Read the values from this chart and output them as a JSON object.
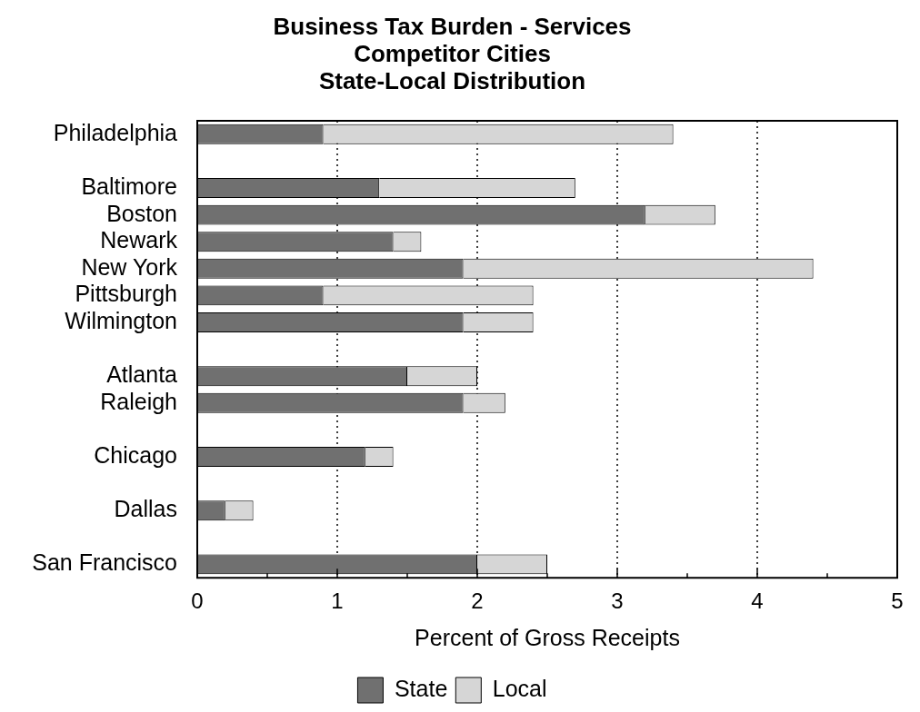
{
  "chart_data": {
    "type": "bar",
    "orientation": "horizontal",
    "stacked": true,
    "title": "Business Tax Burden - Services",
    "subtitle": "Competitor Cities\nState-Local Distribution",
    "xlabel": "Percent of Gross Receipts",
    "categories": [
      "Philadelphia",
      null,
      "Baltimore",
      "Boston",
      "Newark",
      "New York",
      "Pittsburgh",
      "Wilmington",
      null,
      "Atlanta",
      "Raleigh",
      null,
      "Chicago",
      null,
      "Dallas",
      null,
      "San Francisco"
    ],
    "series": [
      {
        "name": "State",
        "color": "#707070",
        "values": [
          0.9,
          null,
          1.3,
          3.2,
          1.4,
          1.9,
          0.9,
          1.9,
          null,
          1.5,
          1.9,
          null,
          1.2,
          null,
          0.2,
          null,
          2.0
        ]
      },
      {
        "name": "Local",
        "color": "#d6d6d6",
        "values": [
          2.5,
          null,
          1.4,
          0.5,
          0.2,
          2.5,
          1.5,
          0.5,
          null,
          0.5,
          0.3,
          null,
          0.2,
          null,
          0.2,
          null,
          0.5
        ]
      }
    ],
    "xlim": [
      0,
      5
    ],
    "xticks": [
      0,
      {
        "value": 0.5,
        "label": null
      },
      1,
      {
        "value": 1.5,
        "label": null
      },
      2,
      {
        "value": 2.5,
        "label": null
      },
      3,
      {
        "value": 3.5,
        "label": null
      },
      4,
      {
        "value": 4.5,
        "label": null
      },
      5
    ],
    "grid": "x",
    "legend": "bottom"
  }
}
